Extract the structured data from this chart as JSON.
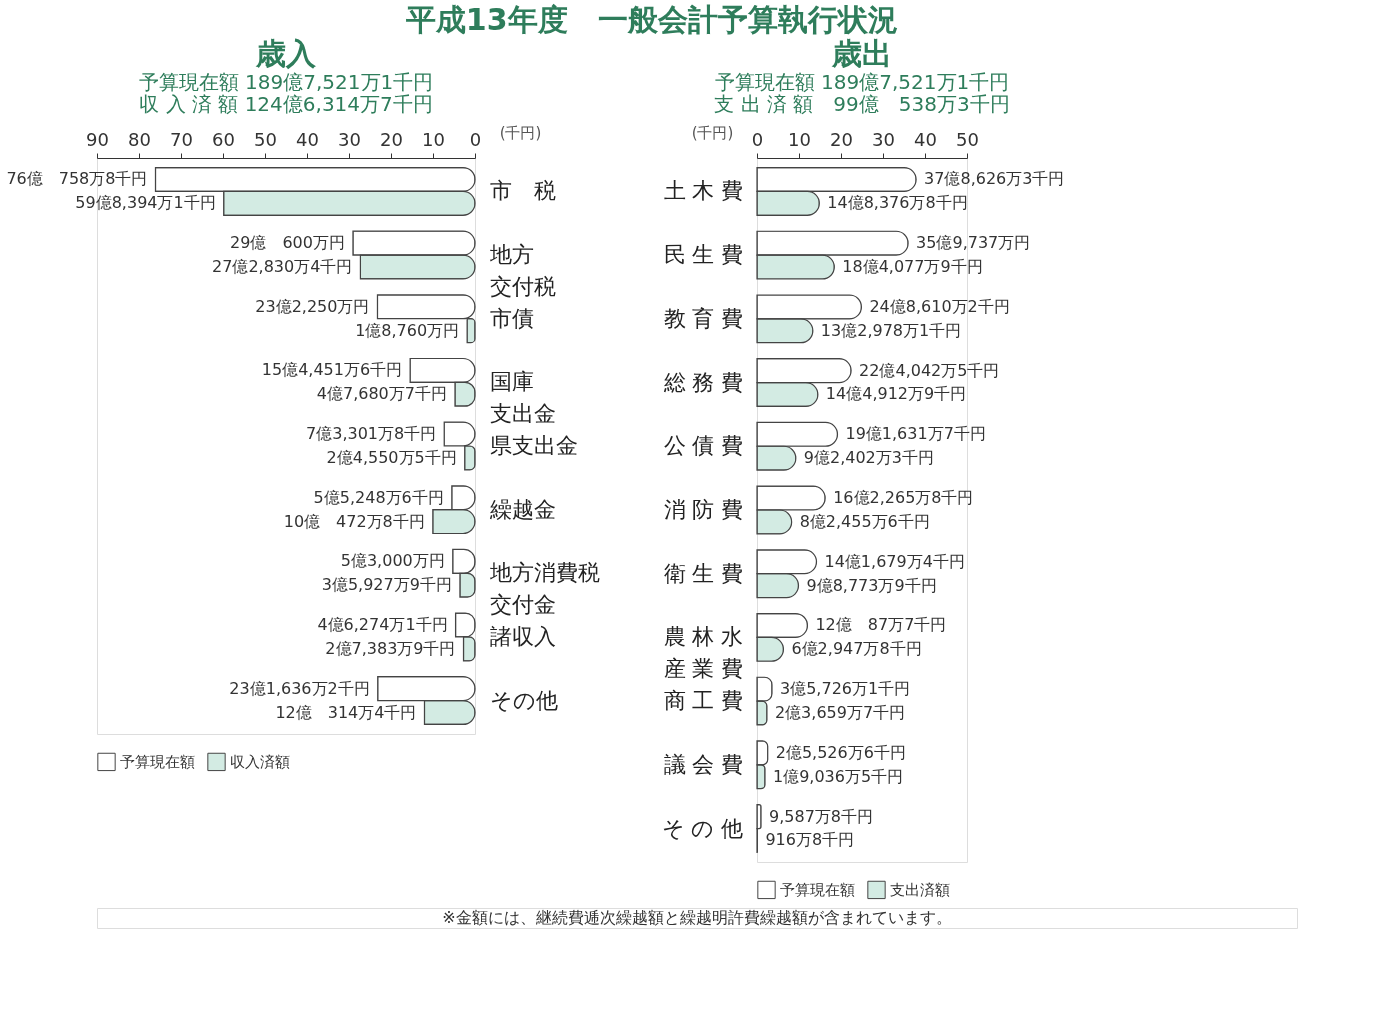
{
  "chart_data": [
    {
      "type": "bar",
      "orientation": "horizontal",
      "title": "歳入",
      "subtitle": [
        "予算現在額 189億7,521万1千円",
        "収 入 済 額 124億6,314万7千円"
      ],
      "xlabel": "(千円)",
      "annotations": [
        "平成13年度　一般会計予算執行状況",
        "※金額には、継続費逓次繰越額と繰越明許費繰越額が含まれています。",
        "76億　758万8千円",
        "59億8,394万1千円",
        "29億　600万円",
        "27億2,830万4千円",
        "23億2,250万円",
        "1億8,760万円",
        "15億4,451万6千円",
        "4億7,680万7千円",
        "7億3,301万8千円",
        "2億4,550万5千円",
        "5億5,248万6千円",
        "10億　472万8千円",
        "5億3,000万円",
        "3億5,927万9千円",
        "4億6,274万1千円",
        "2億7,383万9千円",
        "23億1,636万2千円",
        "12億　314万4千円"
      ],
      "categories": [
        "市　税",
        "地方交付税",
        "市債",
        "国庫支出金",
        "県支出金",
        "繰越金",
        "地方消費税交付金",
        "諸収入",
        "その他"
      ],
      "xlim": [
        90,
        0
      ],
      "xticks": [
        90,
        80,
        70,
        60,
        50,
        40,
        30,
        20,
        10,
        0
      ],
      "legend": "bottom",
      "grid": false,
      "series": [
        {
          "name": "予算現在額",
          "color": "#ffffff",
          "values": [
            76.07588,
            29.06,
            23.225,
            15.44516,
            7.33018,
            5.52486,
            5.3,
            4.62741,
            23.16362
          ]
        },
        {
          "name": "収入済額",
          "color": "#d3ebe3",
          "values": [
            59.83941,
            27.28304,
            1.876,
            4.76807,
            2.45505,
            10.04728,
            3.59279,
            2.73839,
            12.03144
          ]
        }
      ]
    },
    {
      "type": "bar",
      "orientation": "horizontal",
      "title": "歳出",
      "subtitle": [
        "予算現在額 189億7,521万1千円",
        "支 出 済 額　99億　538万3千円"
      ],
      "xlabel": "(千円)",
      "annotations": [
        "37億8,626万3千円",
        "14億8,376万8千円",
        "35億9,737万円",
        "18億4,077万9千円",
        "24億8,610万2千円",
        "13億2,978万1千円",
        "22億4,042万5千円",
        "14億4,912万9千円",
        "19億1,631万7千円",
        "9億2,402万3千円",
        "16億2,265万8千円",
        "8億2,455万6千円",
        "14億1,679万4千円",
        "9億8,773万9千円",
        "12億　87万7千円",
        "6億2,947万8千円",
        "3億5,726万1千円",
        "2億3,659万7千円",
        "2億5,526万6千円",
        "1億9,036万5千円",
        "9,587万8千円",
        "916万8千円"
      ],
      "categories": [
        "土木費",
        "民生費",
        "教育費",
        "総務費",
        "公債費",
        "消防費",
        "衛生費",
        "農林水産業費",
        "商工費",
        "議会費",
        "その他"
      ],
      "xlim": [
        0,
        50
      ],
      "xticks": [
        0,
        10,
        20,
        30,
        40,
        50
      ],
      "legend": "bottom",
      "grid": false,
      "series": [
        {
          "name": "予算現在額",
          "color": "#ffffff",
          "values": [
            37.88263,
            35.9737,
            24.86102,
            22.40425,
            19.16317,
            16.22658,
            14.16794,
            12.00877,
            3.57261,
            2.55266,
            0.95878
          ]
        },
        {
          "name": "支出済額",
          "color": "#d3ebe3",
          "values": [
            14.83768,
            18.40779,
            13.29781,
            14.49129,
            9.24023,
            8.24556,
            9.87739,
            6.29478,
            2.36597,
            1.90365,
            0.09168
          ]
        }
      ]
    }
  ]
}
